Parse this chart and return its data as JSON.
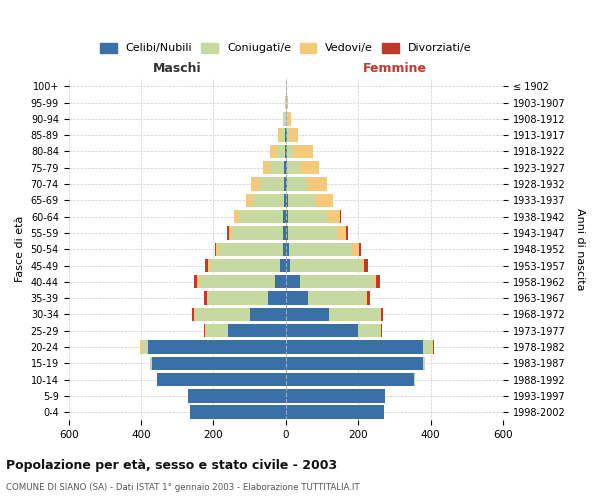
{
  "age_groups": [
    "0-4",
    "5-9",
    "10-14",
    "15-19",
    "20-24",
    "25-29",
    "30-34",
    "35-39",
    "40-44",
    "45-49",
    "50-54",
    "55-59",
    "60-64",
    "65-69",
    "70-74",
    "75-79",
    "80-84",
    "85-89",
    "90-94",
    "95-99",
    "100+"
  ],
  "birth_years": [
    "1998-2002",
    "1993-1997",
    "1988-1992",
    "1983-1987",
    "1978-1982",
    "1973-1977",
    "1968-1972",
    "1963-1967",
    "1958-1962",
    "1953-1957",
    "1948-1952",
    "1943-1947",
    "1938-1942",
    "1933-1937",
    "1928-1932",
    "1923-1927",
    "1918-1922",
    "1913-1917",
    "1908-1912",
    "1903-1907",
    "≤ 1902"
  ],
  "male_celibe": [
    265,
    270,
    355,
    370,
    380,
    160,
    100,
    50,
    30,
    15,
    9,
    8,
    7,
    6,
    5,
    4,
    3,
    2,
    0,
    0,
    0
  ],
  "male_coniugato": [
    0,
    0,
    2,
    5,
    20,
    60,
    150,
    165,
    210,
    195,
    175,
    140,
    120,
    85,
    65,
    40,
    20,
    10,
    4,
    2,
    0
  ],
  "male_vedovo": [
    0,
    0,
    0,
    0,
    3,
    3,
    3,
    4,
    5,
    5,
    8,
    10,
    15,
    20,
    25,
    20,
    20,
    10,
    3,
    1,
    0
  ],
  "male_divorziato": [
    0,
    0,
    0,
    0,
    0,
    3,
    5,
    8,
    8,
    8,
    5,
    5,
    2,
    0,
    0,
    0,
    0,
    0,
    0,
    0,
    0
  ],
  "female_celibe": [
    270,
    275,
    355,
    380,
    380,
    200,
    120,
    60,
    40,
    12,
    8,
    6,
    5,
    5,
    4,
    3,
    2,
    2,
    0,
    0,
    0
  ],
  "female_coniugato": [
    0,
    0,
    2,
    5,
    25,
    60,
    140,
    160,
    200,
    195,
    175,
    135,
    110,
    75,
    55,
    35,
    18,
    8,
    5,
    2,
    0
  ],
  "female_vedovo": [
    0,
    0,
    0,
    0,
    2,
    3,
    4,
    5,
    10,
    10,
    20,
    25,
    35,
    50,
    55,
    55,
    55,
    25,
    8,
    3,
    0
  ],
  "female_divorziato": [
    0,
    0,
    0,
    0,
    2,
    3,
    5,
    8,
    10,
    10,
    5,
    5,
    3,
    0,
    0,
    0,
    0,
    0,
    0,
    0,
    0
  ],
  "colors": {
    "celibe": "#3a6fa8",
    "coniugato": "#c5d9a0",
    "vedovo": "#f5c97a",
    "divorziato": "#c0392b"
  },
  "xlim": 600,
  "title": "Popolazione per età, sesso e stato civile - 2003",
  "subtitle": "COMUNE DI SIANO (SA) - Dati ISTAT 1° gennaio 2003 - Elaborazione TUTTITALIA.IT",
  "xlabel_left": "Maschi",
  "xlabel_right": "Femmine",
  "ylabel_left": "Fasce di età",
  "ylabel_right": "Anni di nascita",
  "legend_labels": [
    "Celibi/Nubili",
    "Coniugati/e",
    "Vedovi/e",
    "Divorziati/e"
  ],
  "bg_color": "#ffffff",
  "grid_color": "#cccccc",
  "maschi_color": "#333333",
  "femmine_color": "#c0392b"
}
